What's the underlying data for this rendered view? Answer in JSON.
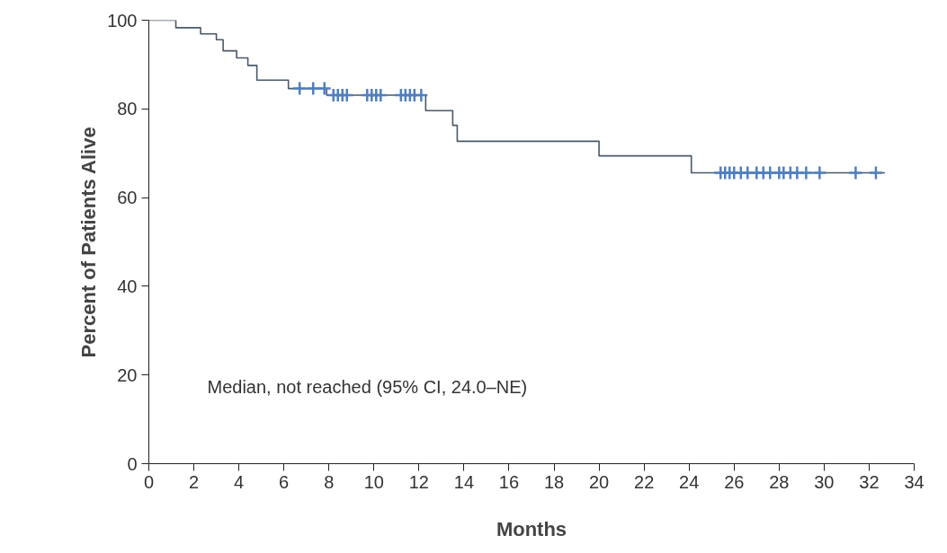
{
  "chart_data": {
    "type": "step",
    "xlabel": "Months",
    "ylabel": "Percent of Patients Alive",
    "annotations": [
      "Median, not reached (95% CI, 24.0–NE)"
    ],
    "xlim": [
      0,
      34
    ],
    "xticks": [
      0,
      2,
      4,
      6,
      8,
      10,
      12,
      14,
      16,
      18,
      20,
      22,
      24,
      26,
      28,
      30,
      32,
      34
    ],
    "ylim": [
      0,
      100
    ],
    "yticks": [
      0,
      20,
      40,
      60,
      80,
      100
    ],
    "grid": false,
    "series": [
      {
        "color": "#4a5868",
        "line_style": "solid",
        "x": [
          0,
          1.2,
          2.3,
          3.0,
          3.3,
          3.9,
          4.4,
          4.8,
          6.2,
          7.9,
          12.3,
          13.5,
          13.7,
          20.0,
          24.1,
          32.7
        ],
        "values": [
          100,
          98.3,
          96.9,
          95.6,
          93.1,
          91.5,
          89.8,
          86.5,
          84.6,
          83.1,
          79.6,
          76.3,
          72.7,
          69.4,
          65.6,
          65.6
        ]
      },
      {
        "type": "scatter",
        "color": "#4f7fc0",
        "marker": "cross",
        "x": [
          6.7,
          7.3,
          7.8,
          8.2,
          8.4,
          8.6,
          8.8,
          9.7,
          9.9,
          10.1,
          10.3,
          11.2,
          11.4,
          11.6,
          11.8,
          12.1,
          25.4,
          25.6,
          25.8,
          26.0,
          26.3,
          26.6,
          27.0,
          27.3,
          27.6,
          28.0,
          28.2,
          28.5,
          28.8,
          29.2,
          29.8,
          31.4,
          32.3
        ],
        "values": [
          84.6,
          84.6,
          84.6,
          83.1,
          83.1,
          83.1,
          83.1,
          83.1,
          83.1,
          83.1,
          83.1,
          83.1,
          83.1,
          83.1,
          83.1,
          83.1,
          65.6,
          65.6,
          65.6,
          65.6,
          65.6,
          65.6,
          65.6,
          65.6,
          65.6,
          65.6,
          65.6,
          65.6,
          65.6,
          65.6,
          65.6,
          65.6,
          65.6
        ]
      }
    ]
  }
}
